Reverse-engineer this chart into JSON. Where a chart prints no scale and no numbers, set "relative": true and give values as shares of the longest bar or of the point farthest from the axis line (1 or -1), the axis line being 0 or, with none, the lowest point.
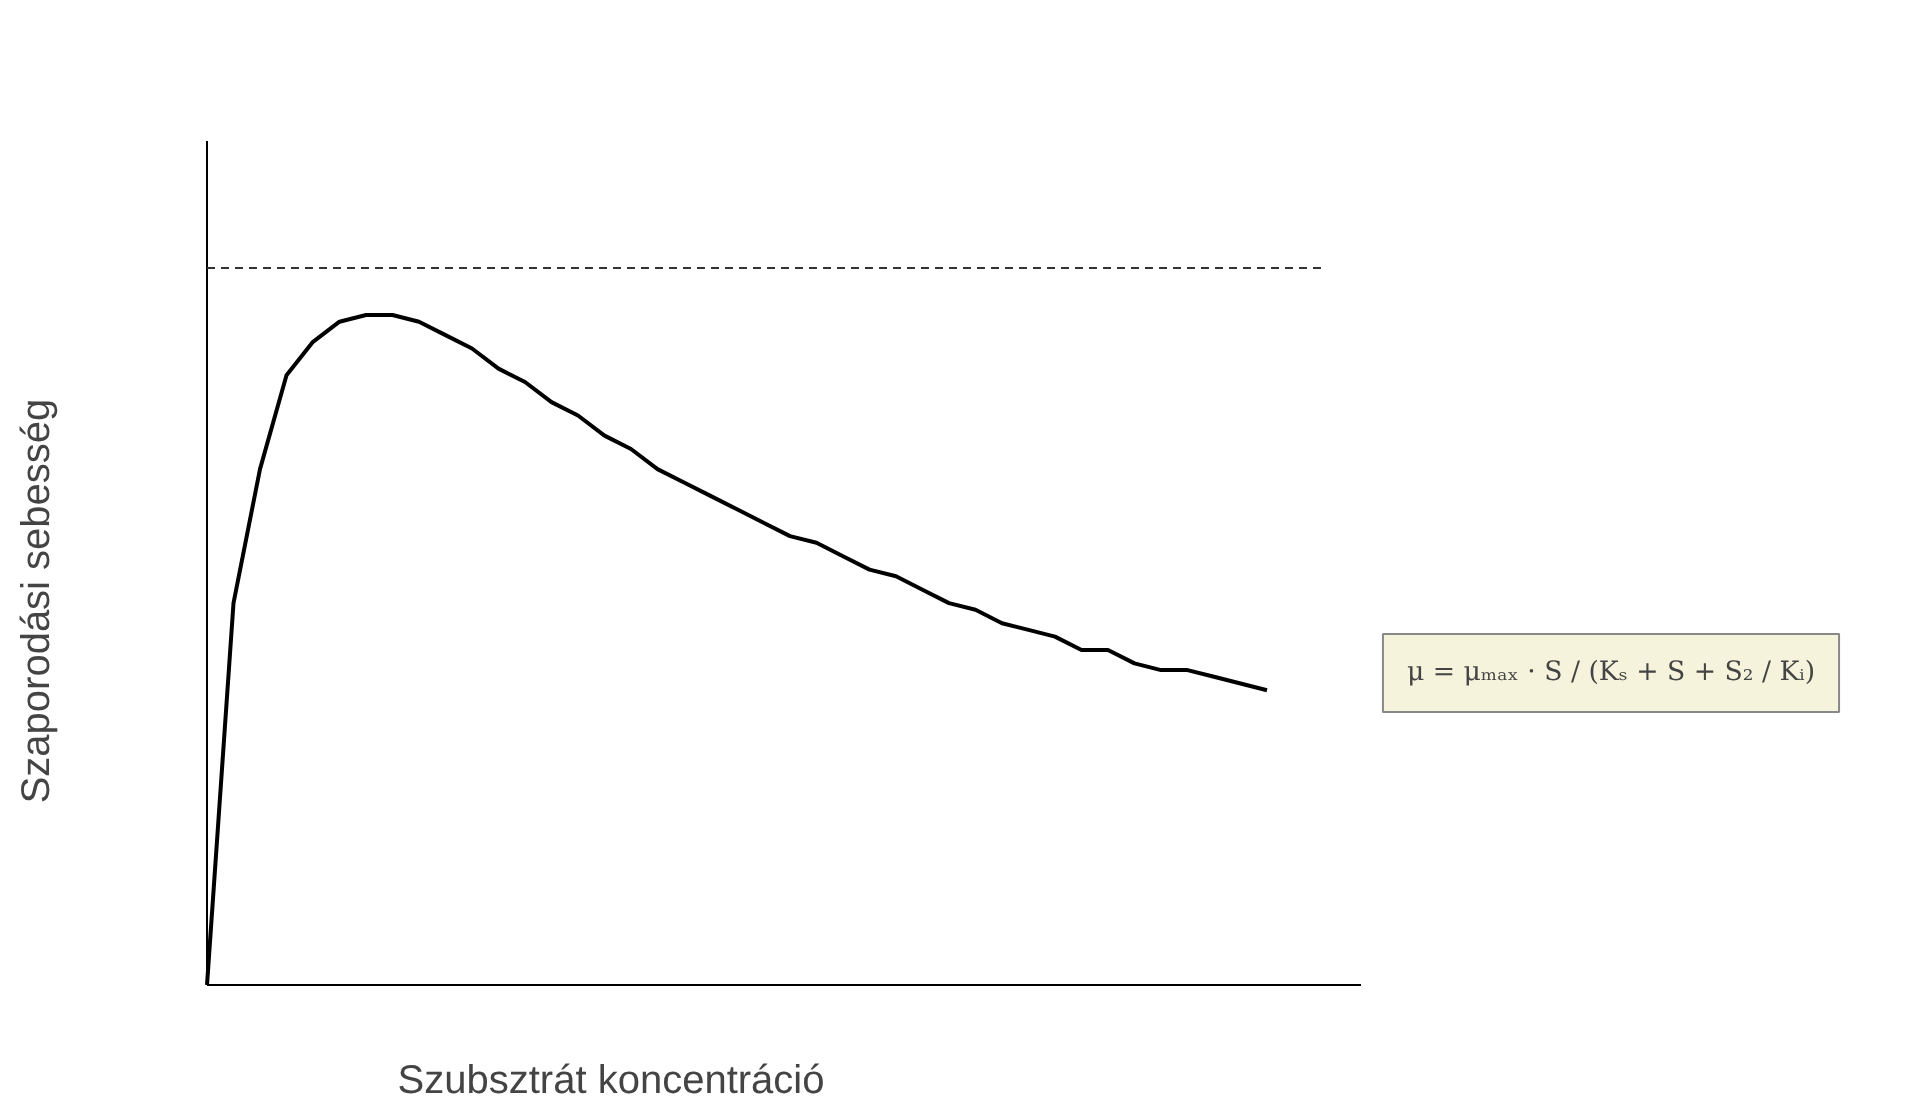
{
  "chart_data": {
    "type": "line",
    "relative": true,
    "color": "#000000",
    "line_style": "solid",
    "xlabel": "Szubsztrát koncentráció",
    "ylabel": "Szaporodási sebesség",
    "categories": [
      null,
      null,
      null,
      null,
      null,
      null,
      null,
      null,
      null,
      null,
      null,
      null,
      null,
      null,
      null,
      null,
      null,
      null,
      null,
      null,
      null,
      null,
      null,
      null,
      null,
      null,
      null,
      null,
      null,
      null,
      null,
      null,
      null,
      null,
      null,
      null,
      null,
      null,
      null,
      null,
      null
    ],
    "values": [
      0,
      0.57,
      0.77,
      0.91,
      0.96,
      0.99,
      1,
      1,
      0.99,
      0.97,
      0.95,
      0.92,
      0.9,
      0.87,
      0.85,
      0.82,
      0.8,
      0.77,
      0.75,
      0.73,
      0.71,
      0.69,
      0.67,
      0.66,
      0.64,
      0.62,
      0.61,
      0.59,
      0.57,
      0.56,
      0.54,
      0.53,
      0.52,
      0.5,
      0.5,
      0.48,
      0.47,
      0.47,
      0.46,
      0.45,
      0.44
    ],
    "ref_lines": [
      {
        "axis": "y",
        "value": 1.07,
        "line_style": "dashed",
        "color": "#333333"
      }
    ],
    "annotations": [
      "μ = μₘₐₓ · S / (Kₛ + S + S₂ / Kᵢ)"
    ]
  }
}
